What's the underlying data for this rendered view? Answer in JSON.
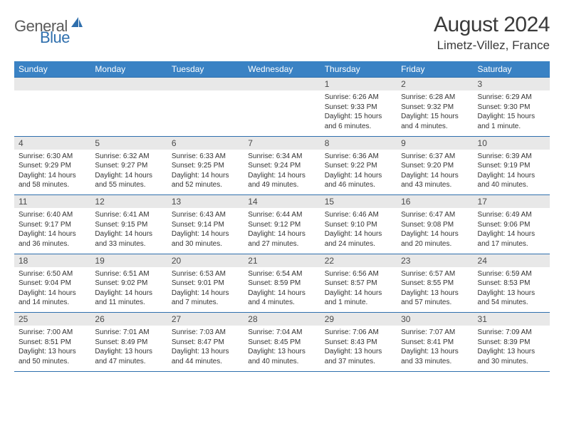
{
  "brand": {
    "part1": "General",
    "part2": "Blue"
  },
  "title": "August 2024",
  "location": "Limetz-Villez, France",
  "colors": {
    "header_bg": "#3a82c4",
    "header_text": "#ffffff",
    "daynum_bg": "#e8e8e8",
    "border": "#2f6fad",
    "text": "#333333",
    "brand_gray": "#5a5a5a",
    "brand_blue": "#2f6fad"
  },
  "weekdays": [
    "Sunday",
    "Monday",
    "Tuesday",
    "Wednesday",
    "Thursday",
    "Friday",
    "Saturday"
  ],
  "weeks": [
    {
      "nums": [
        "",
        "",
        "",
        "",
        "1",
        "2",
        "3"
      ],
      "cells": [
        null,
        null,
        null,
        null,
        {
          "sunrise": "Sunrise: 6:26 AM",
          "sunset": "Sunset: 9:33 PM",
          "daylight1": "Daylight: 15 hours",
          "daylight2": "and 6 minutes."
        },
        {
          "sunrise": "Sunrise: 6:28 AM",
          "sunset": "Sunset: 9:32 PM",
          "daylight1": "Daylight: 15 hours",
          "daylight2": "and 4 minutes."
        },
        {
          "sunrise": "Sunrise: 6:29 AM",
          "sunset": "Sunset: 9:30 PM",
          "daylight1": "Daylight: 15 hours",
          "daylight2": "and 1 minute."
        }
      ]
    },
    {
      "nums": [
        "4",
        "5",
        "6",
        "7",
        "8",
        "9",
        "10"
      ],
      "cells": [
        {
          "sunrise": "Sunrise: 6:30 AM",
          "sunset": "Sunset: 9:29 PM",
          "daylight1": "Daylight: 14 hours",
          "daylight2": "and 58 minutes."
        },
        {
          "sunrise": "Sunrise: 6:32 AM",
          "sunset": "Sunset: 9:27 PM",
          "daylight1": "Daylight: 14 hours",
          "daylight2": "and 55 minutes."
        },
        {
          "sunrise": "Sunrise: 6:33 AM",
          "sunset": "Sunset: 9:25 PM",
          "daylight1": "Daylight: 14 hours",
          "daylight2": "and 52 minutes."
        },
        {
          "sunrise": "Sunrise: 6:34 AM",
          "sunset": "Sunset: 9:24 PM",
          "daylight1": "Daylight: 14 hours",
          "daylight2": "and 49 minutes."
        },
        {
          "sunrise": "Sunrise: 6:36 AM",
          "sunset": "Sunset: 9:22 PM",
          "daylight1": "Daylight: 14 hours",
          "daylight2": "and 46 minutes."
        },
        {
          "sunrise": "Sunrise: 6:37 AM",
          "sunset": "Sunset: 9:20 PM",
          "daylight1": "Daylight: 14 hours",
          "daylight2": "and 43 minutes."
        },
        {
          "sunrise": "Sunrise: 6:39 AM",
          "sunset": "Sunset: 9:19 PM",
          "daylight1": "Daylight: 14 hours",
          "daylight2": "and 40 minutes."
        }
      ]
    },
    {
      "nums": [
        "11",
        "12",
        "13",
        "14",
        "15",
        "16",
        "17"
      ],
      "cells": [
        {
          "sunrise": "Sunrise: 6:40 AM",
          "sunset": "Sunset: 9:17 PM",
          "daylight1": "Daylight: 14 hours",
          "daylight2": "and 36 minutes."
        },
        {
          "sunrise": "Sunrise: 6:41 AM",
          "sunset": "Sunset: 9:15 PM",
          "daylight1": "Daylight: 14 hours",
          "daylight2": "and 33 minutes."
        },
        {
          "sunrise": "Sunrise: 6:43 AM",
          "sunset": "Sunset: 9:14 PM",
          "daylight1": "Daylight: 14 hours",
          "daylight2": "and 30 minutes."
        },
        {
          "sunrise": "Sunrise: 6:44 AM",
          "sunset": "Sunset: 9:12 PM",
          "daylight1": "Daylight: 14 hours",
          "daylight2": "and 27 minutes."
        },
        {
          "sunrise": "Sunrise: 6:46 AM",
          "sunset": "Sunset: 9:10 PM",
          "daylight1": "Daylight: 14 hours",
          "daylight2": "and 24 minutes."
        },
        {
          "sunrise": "Sunrise: 6:47 AM",
          "sunset": "Sunset: 9:08 PM",
          "daylight1": "Daylight: 14 hours",
          "daylight2": "and 20 minutes."
        },
        {
          "sunrise": "Sunrise: 6:49 AM",
          "sunset": "Sunset: 9:06 PM",
          "daylight1": "Daylight: 14 hours",
          "daylight2": "and 17 minutes."
        }
      ]
    },
    {
      "nums": [
        "18",
        "19",
        "20",
        "21",
        "22",
        "23",
        "24"
      ],
      "cells": [
        {
          "sunrise": "Sunrise: 6:50 AM",
          "sunset": "Sunset: 9:04 PM",
          "daylight1": "Daylight: 14 hours",
          "daylight2": "and 14 minutes."
        },
        {
          "sunrise": "Sunrise: 6:51 AM",
          "sunset": "Sunset: 9:02 PM",
          "daylight1": "Daylight: 14 hours",
          "daylight2": "and 11 minutes."
        },
        {
          "sunrise": "Sunrise: 6:53 AM",
          "sunset": "Sunset: 9:01 PM",
          "daylight1": "Daylight: 14 hours",
          "daylight2": "and 7 minutes."
        },
        {
          "sunrise": "Sunrise: 6:54 AM",
          "sunset": "Sunset: 8:59 PM",
          "daylight1": "Daylight: 14 hours",
          "daylight2": "and 4 minutes."
        },
        {
          "sunrise": "Sunrise: 6:56 AM",
          "sunset": "Sunset: 8:57 PM",
          "daylight1": "Daylight: 14 hours",
          "daylight2": "and 1 minute."
        },
        {
          "sunrise": "Sunrise: 6:57 AM",
          "sunset": "Sunset: 8:55 PM",
          "daylight1": "Daylight: 13 hours",
          "daylight2": "and 57 minutes."
        },
        {
          "sunrise": "Sunrise: 6:59 AM",
          "sunset": "Sunset: 8:53 PM",
          "daylight1": "Daylight: 13 hours",
          "daylight2": "and 54 minutes."
        }
      ]
    },
    {
      "nums": [
        "25",
        "26",
        "27",
        "28",
        "29",
        "30",
        "31"
      ],
      "cells": [
        {
          "sunrise": "Sunrise: 7:00 AM",
          "sunset": "Sunset: 8:51 PM",
          "daylight1": "Daylight: 13 hours",
          "daylight2": "and 50 minutes."
        },
        {
          "sunrise": "Sunrise: 7:01 AM",
          "sunset": "Sunset: 8:49 PM",
          "daylight1": "Daylight: 13 hours",
          "daylight2": "and 47 minutes."
        },
        {
          "sunrise": "Sunrise: 7:03 AM",
          "sunset": "Sunset: 8:47 PM",
          "daylight1": "Daylight: 13 hours",
          "daylight2": "and 44 minutes."
        },
        {
          "sunrise": "Sunrise: 7:04 AM",
          "sunset": "Sunset: 8:45 PM",
          "daylight1": "Daylight: 13 hours",
          "daylight2": "and 40 minutes."
        },
        {
          "sunrise": "Sunrise: 7:06 AM",
          "sunset": "Sunset: 8:43 PM",
          "daylight1": "Daylight: 13 hours",
          "daylight2": "and 37 minutes."
        },
        {
          "sunrise": "Sunrise: 7:07 AM",
          "sunset": "Sunset: 8:41 PM",
          "daylight1": "Daylight: 13 hours",
          "daylight2": "and 33 minutes."
        },
        {
          "sunrise": "Sunrise: 7:09 AM",
          "sunset": "Sunset: 8:39 PM",
          "daylight1": "Daylight: 13 hours",
          "daylight2": "and 30 minutes."
        }
      ]
    }
  ]
}
